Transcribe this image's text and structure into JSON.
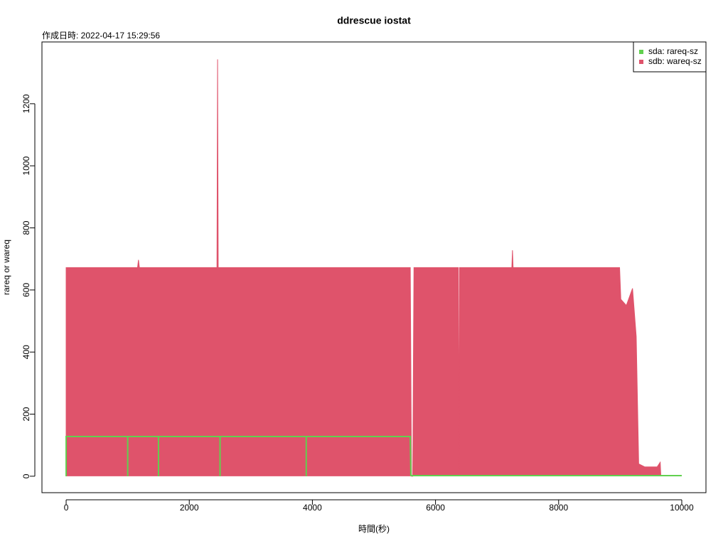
{
  "chart_data": {
    "type": "line",
    "title": "ddrescue iostat",
    "subtitle": "作成日時: 2022-04-17 15:29:56",
    "xlabel": "時間(秒)",
    "ylabel": "rareq or wareq",
    "xlim": [
      -393,
      10393
    ],
    "ylim": [
      -53,
      1399
    ],
    "xticks": [
      0,
      2000,
      4000,
      6000,
      8000,
      10000
    ],
    "yticks": [
      0,
      200,
      400,
      600,
      800,
      1000,
      1200
    ],
    "grid": false,
    "legend": "top-right",
    "series": [
      {
        "name": "sda: rareq-sz",
        "color": "#61D04F",
        "fill": false,
        "x": [
          0,
          0,
          1000,
          1000,
          1000,
          1500,
          1500,
          1500,
          2500,
          2500,
          2500,
          3900,
          3900,
          3900,
          5590,
          5600,
          10000
        ],
        "values": [
          0,
          128,
          128,
          0,
          128,
          128,
          0,
          128,
          128,
          0,
          128,
          128,
          0,
          128,
          128,
          2,
          2
        ]
      },
      {
        "name": "sdb: wareq-sz",
        "color": "#DF536B",
        "fill": true,
        "x": [
          0,
          0,
          1160,
          1175,
          1190,
          2450,
          2460,
          2470,
          5590,
          5610,
          5630,
          5650,
          6370,
          6380,
          6390,
          7240,
          7250,
          7260,
          8990,
          9010,
          9100,
          9200,
          9260,
          9300,
          9400,
          9500,
          9600,
          9650,
          9660
        ],
        "values": [
          0,
          672,
          672,
          697,
          672,
          672,
          1343,
          672,
          672,
          0,
          0,
          672,
          672,
          0,
          672,
          672,
          728,
          672,
          672,
          570,
          550,
          605,
          450,
          40,
          30,
          30,
          30,
          45,
          0
        ]
      }
    ]
  }
}
